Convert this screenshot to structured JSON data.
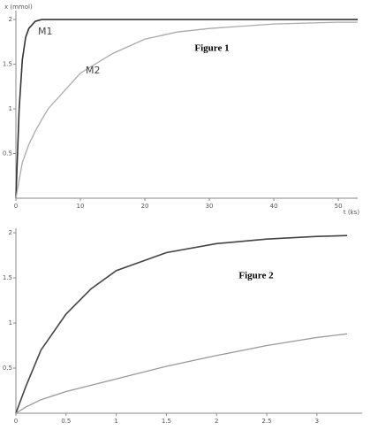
{
  "chart_data": [
    {
      "type": "line",
      "title": "Figure 1",
      "y_label": "x (mmol)",
      "x_label": "t (ks)",
      "xlim": [
        0,
        53
      ],
      "ylim": [
        0,
        2.1
      ],
      "xticks": [
        0,
        10,
        20,
        30,
        40,
        50
      ],
      "yticks": [
        0.5,
        1,
        1.5,
        2
      ],
      "x": [
        0,
        0.5,
        1,
        1.5,
        2,
        3,
        4,
        5,
        10,
        15,
        20,
        25,
        30,
        40,
        50,
        53
      ],
      "series": [
        {
          "name": "M1",
          "color": "#333333",
          "values": [
            0,
            1.0,
            1.55,
            1.8,
            1.9,
            1.98,
            2.0,
            2.0,
            2.0,
            2.0,
            2.0,
            2.0,
            2.0,
            2.0,
            2.0,
            2.0
          ]
        },
        {
          "name": "M2",
          "color": "#aaaaaa",
          "values": [
            0,
            0.2,
            0.4,
            0.5,
            0.6,
            0.75,
            0.88,
            1.0,
            1.4,
            1.62,
            1.78,
            1.86,
            1.9,
            1.95,
            1.97,
            1.97
          ]
        }
      ]
    },
    {
      "type": "line",
      "title": "Figure 2",
      "xlim": [
        0,
        3.45
      ],
      "ylim": [
        0,
        2.05
      ],
      "xticks": [
        0,
        0.5,
        1,
        1.5,
        2,
        2.5,
        3
      ],
      "yticks": [
        0.5,
        1,
        1.5,
        2
      ],
      "x": [
        0,
        0.1,
        0.25,
        0.5,
        0.75,
        1,
        1.5,
        2,
        2.5,
        3,
        3.3
      ],
      "series": [
        {
          "color": "#444444",
          "values": [
            0,
            0.3,
            0.7,
            1.1,
            1.38,
            1.58,
            1.78,
            1.88,
            1.93,
            1.96,
            1.97
          ]
        },
        {
          "color": "#999999",
          "values": [
            0,
            0.07,
            0.15,
            0.24,
            0.31,
            0.38,
            0.52,
            0.64,
            0.75,
            0.84,
            0.88
          ]
        }
      ]
    }
  ]
}
